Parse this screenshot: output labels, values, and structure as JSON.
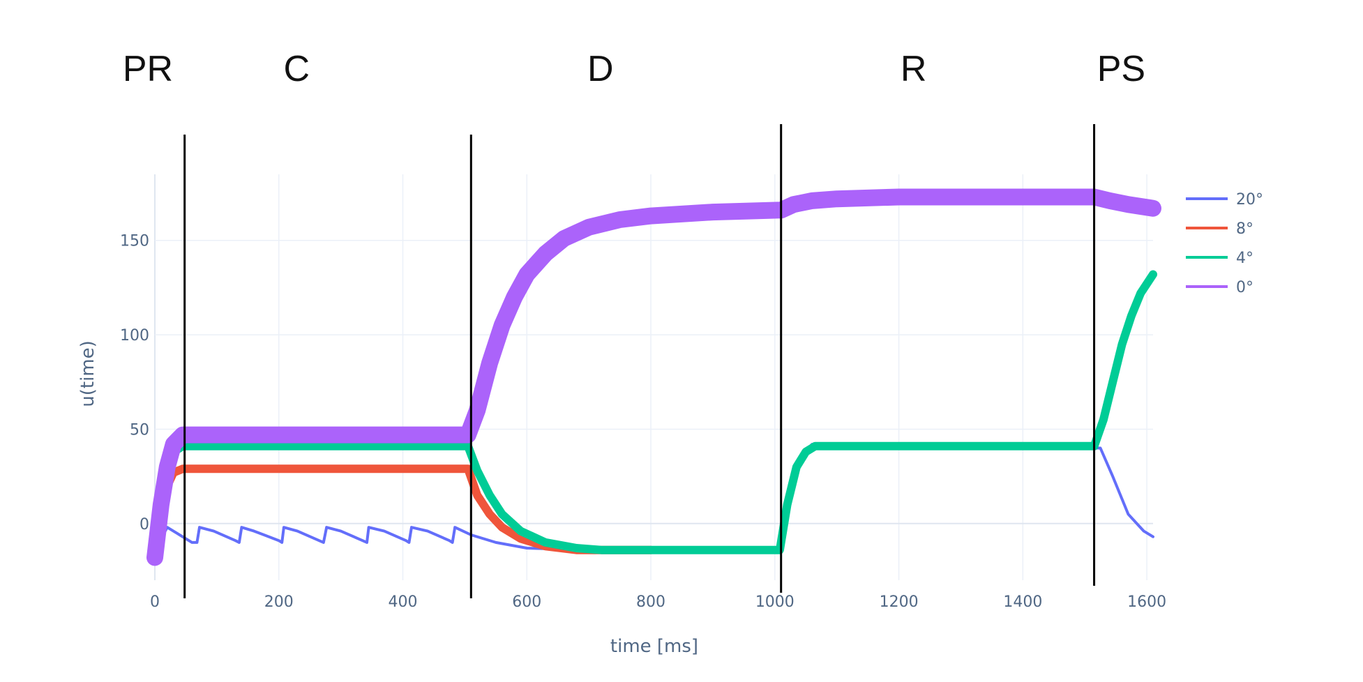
{
  "chart_data": {
    "type": "line",
    "xlabel": "time [ms]",
    "ylabel": "u(time)",
    "xlim": [
      0,
      1610
    ],
    "ylim": [
      -30,
      185
    ],
    "x_ticks": [
      0,
      200,
      400,
      600,
      800,
      1000,
      1200,
      1400,
      1600
    ],
    "y_ticks": [
      0,
      50,
      100,
      150
    ],
    "grid": true,
    "legend_position": "top-right",
    "phases": [
      {
        "label": "PR",
        "label_x": 0
      },
      {
        "label": "C",
        "label_x": 240
      },
      {
        "label": "D",
        "label_x": 730
      },
      {
        "label": "R",
        "label_x": 1235
      },
      {
        "label": "PS",
        "label_x": 1570
      }
    ],
    "phase_boundaries": [
      48,
      510,
      1010,
      1515
    ],
    "series": [
      {
        "name": "20°",
        "color": "#636efa",
        "points": [
          [
            0,
            -18
          ],
          [
            10,
            -8
          ],
          [
            20,
            -2
          ],
          [
            35,
            -5
          ],
          [
            60,
            -10
          ],
          [
            68,
            -10
          ],
          [
            72,
            -2
          ],
          [
            95,
            -4
          ],
          [
            130,
            -9
          ],
          [
            136,
            -10
          ],
          [
            140,
            -2
          ],
          [
            160,
            -4
          ],
          [
            200,
            -9
          ],
          [
            205,
            -10
          ],
          [
            208,
            -2
          ],
          [
            230,
            -4
          ],
          [
            265,
            -9
          ],
          [
            272,
            -10
          ],
          [
            277,
            -2
          ],
          [
            300,
            -4
          ],
          [
            335,
            -9
          ],
          [
            342,
            -10
          ],
          [
            345,
            -2
          ],
          [
            370,
            -4
          ],
          [
            405,
            -9
          ],
          [
            410,
            -10
          ],
          [
            414,
            -2
          ],
          [
            440,
            -4
          ],
          [
            475,
            -9
          ],
          [
            480,
            -10
          ],
          [
            484,
            -2
          ],
          [
            510,
            -6
          ],
          [
            550,
            -10
          ],
          [
            600,
            -13
          ],
          [
            700,
            -14
          ],
          [
            800,
            -14
          ],
          [
            1005,
            -14
          ],
          [
            1020,
            15
          ],
          [
            1040,
            35
          ],
          [
            1060,
            42
          ],
          [
            1200,
            41
          ],
          [
            1400,
            40
          ],
          [
            1510,
            40
          ],
          [
            1525,
            40
          ],
          [
            1545,
            25
          ],
          [
            1570,
            5
          ],
          [
            1595,
            -4
          ],
          [
            1610,
            -7
          ]
        ],
        "band": 2
      },
      {
        "name": "8°",
        "color": "#ef553b",
        "points": [
          [
            0,
            -18
          ],
          [
            10,
            5
          ],
          [
            20,
            20
          ],
          [
            30,
            27
          ],
          [
            45,
            29
          ],
          [
            100,
            29
          ],
          [
            200,
            29
          ],
          [
            300,
            29
          ],
          [
            400,
            29
          ],
          [
            505,
            29
          ],
          [
            520,
            15
          ],
          [
            540,
            5
          ],
          [
            560,
            -2
          ],
          [
            590,
            -8
          ],
          [
            630,
            -12
          ],
          [
            680,
            -14
          ],
          [
            800,
            -14
          ]
        ],
        "band": 6
      },
      {
        "name": "4°",
        "color": "#00cc96",
        "points": [
          [
            0,
            -18
          ],
          [
            10,
            10
          ],
          [
            20,
            30
          ],
          [
            30,
            38
          ],
          [
            45,
            41
          ],
          [
            100,
            41
          ],
          [
            200,
            41
          ],
          [
            300,
            41
          ],
          [
            400,
            41
          ],
          [
            505,
            41
          ],
          [
            520,
            28
          ],
          [
            540,
            15
          ],
          [
            560,
            5
          ],
          [
            590,
            -4
          ],
          [
            630,
            -10
          ],
          [
            680,
            -13
          ],
          [
            720,
            -14
          ],
          [
            800,
            -14
          ],
          [
            1000,
            -14
          ],
          [
            1008,
            -14
          ],
          [
            1020,
            10
          ],
          [
            1035,
            30
          ],
          [
            1050,
            38
          ],
          [
            1065,
            41
          ],
          [
            1100,
            41
          ],
          [
            1200,
            41
          ],
          [
            1300,
            41
          ],
          [
            1400,
            41
          ],
          [
            1515,
            41
          ],
          [
            1530,
            55
          ],
          [
            1545,
            75
          ],
          [
            1560,
            95
          ],
          [
            1575,
            110
          ],
          [
            1590,
            122
          ],
          [
            1610,
            132
          ]
        ],
        "band": 6
      },
      {
        "name": "0°",
        "color": "#ab63fa",
        "points": [
          [
            0,
            -18
          ],
          [
            10,
            10
          ],
          [
            20,
            30
          ],
          [
            30,
            42
          ],
          [
            45,
            47
          ],
          [
            100,
            47
          ],
          [
            200,
            47
          ],
          [
            300,
            47
          ],
          [
            400,
            47
          ],
          [
            505,
            47
          ],
          [
            520,
            60
          ],
          [
            540,
            85
          ],
          [
            560,
            105
          ],
          [
            580,
            120
          ],
          [
            600,
            132
          ],
          [
            630,
            143
          ],
          [
            660,
            151
          ],
          [
            700,
            157
          ],
          [
            750,
            161
          ],
          [
            800,
            163
          ],
          [
            900,
            165
          ],
          [
            1005,
            166
          ],
          [
            1010,
            166
          ],
          [
            1030,
            169
          ],
          [
            1060,
            171
          ],
          [
            1100,
            172
          ],
          [
            1200,
            173
          ],
          [
            1300,
            173
          ],
          [
            1400,
            173
          ],
          [
            1515,
            173
          ],
          [
            1540,
            171
          ],
          [
            1570,
            169
          ],
          [
            1610,
            167
          ]
        ],
        "band": 12
      }
    ]
  }
}
